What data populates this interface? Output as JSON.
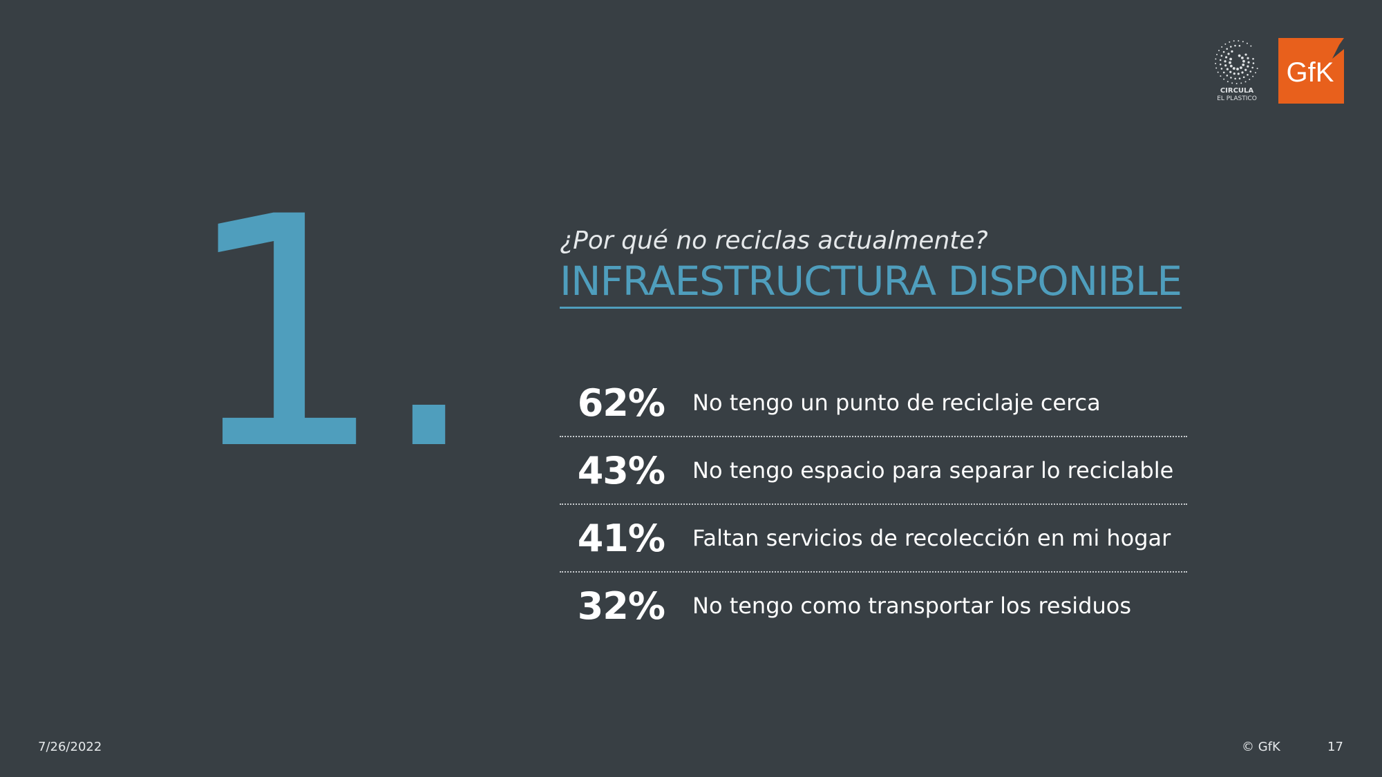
{
  "slide": {
    "number": "1.",
    "question": "¿Por qué no reciclas actualmente?",
    "headline": "INFRAESTRUCTURA DISPONIBLE",
    "stats": [
      {
        "percent": "62%",
        "label": "No tengo un punto de reciclaje cerca"
      },
      {
        "percent": "43%",
        "label": "No tengo espacio para separar lo reciclable"
      },
      {
        "percent": "41%",
        "label": "Faltan servicios de recolección en mi hogar"
      },
      {
        "percent": "32%",
        "label": "No tengo como transportar los residuos"
      }
    ]
  },
  "logos": {
    "circula_line1": "CIRCULA",
    "circula_line2": "EL PLASTICO",
    "gfk": "GfK"
  },
  "footer": {
    "date": "7/26/2022",
    "copyright": "© GfK",
    "page": "17"
  },
  "colors": {
    "background": "#383f44",
    "accent": "#4f9ebd",
    "gfk_orange": "#e8601c"
  }
}
